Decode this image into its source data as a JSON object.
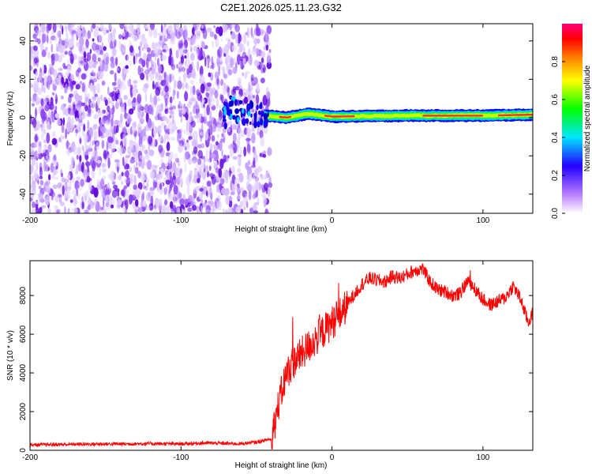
{
  "title": "C2E1.2026.025.11.23.G32",
  "chart_data": [
    {
      "type": "heatmap",
      "xlabel": "Height of straight line (km)",
      "ylabel": "Frequency (Hz)",
      "xlim": [
        -200,
        133
      ],
      "ylim": [
        -50,
        49
      ],
      "xticks": [
        -200,
        -100,
        0,
        100
      ],
      "yticks": [
        -40,
        -20,
        0,
        20,
        40
      ],
      "xtick_labels": [
        "-200",
        "-100",
        "0",
        "100"
      ],
      "ytick_labels": [
        "-40",
        "-20",
        "0",
        "20",
        "40"
      ],
      "noise_region_km": [
        -200,
        -45
      ],
      "signal_region_km": [
        -45,
        133
      ],
      "signal_center_hz": [
        {
          "x": -70,
          "y": 5
        },
        {
          "x": -45,
          "y": 1
        },
        {
          "x": -30,
          "y": 0
        },
        {
          "x": -15,
          "y": 2
        },
        {
          "x": 0,
          "y": 0.5
        },
        {
          "x": 50,
          "y": 1
        },
        {
          "x": 100,
          "y": 1
        },
        {
          "x": 133,
          "y": 1.5
        }
      ],
      "colorbar": {
        "label": "Normalized spectral amplitude",
        "range": [
          0,
          1
        ],
        "ticks": [
          0.0,
          0.2,
          0.4,
          0.6,
          0.8
        ],
        "tick_labels": [
          "0.0",
          "0.2",
          "0.4",
          "0.6",
          "0.8"
        ],
        "colors": [
          "#ffffff",
          "#8a2be2",
          "#0000ff",
          "#00ffff",
          "#00ff00",
          "#ffff00",
          "#ff8000",
          "#ff0000",
          "#ff0080"
        ]
      }
    },
    {
      "type": "line",
      "xlabel": "Height of straight line (km)",
      "ylabel": "SNR (10 * v/v)",
      "xlim": [
        -200,
        133
      ],
      "ylim": [
        0,
        9800
      ],
      "xticks": [
        -200,
        -100,
        0,
        100
      ],
      "yticks": [
        0,
        2000,
        4000,
        6000,
        8000
      ],
      "xtick_labels": [
        "-200",
        "-100",
        "0",
        "100"
      ],
      "ytick_labels": [
        "0",
        "2000",
        "4000",
        "6000",
        "8000"
      ],
      "color": "#ff0000",
      "series": [
        {
          "name": "SNR",
          "points": [
            {
              "x": -200,
              "y": 280
            },
            {
              "x": -180,
              "y": 300
            },
            {
              "x": -160,
              "y": 320
            },
            {
              "x": -140,
              "y": 330
            },
            {
              "x": -120,
              "y": 340
            },
            {
              "x": -100,
              "y": 330
            },
            {
              "x": -85,
              "y": 380
            },
            {
              "x": -70,
              "y": 350
            },
            {
              "x": -60,
              "y": 340
            },
            {
              "x": -50,
              "y": 420
            },
            {
              "x": -40,
              "y": 600
            },
            {
              "x": -35,
              "y": 2500
            },
            {
              "x": -30,
              "y": 4000
            },
            {
              "x": -25,
              "y": 4600
            },
            {
              "x": -20,
              "y": 5000
            },
            {
              "x": -15,
              "y": 5400
            },
            {
              "x": -10,
              "y": 5800
            },
            {
              "x": -5,
              "y": 6200
            },
            {
              "x": 0,
              "y": 6600
            },
            {
              "x": 5,
              "y": 7000
            },
            {
              "x": 10,
              "y": 7500
            },
            {
              "x": 15,
              "y": 8100
            },
            {
              "x": 20,
              "y": 8600
            },
            {
              "x": 25,
              "y": 8900
            },
            {
              "x": 30,
              "y": 8800
            },
            {
              "x": 35,
              "y": 8700
            },
            {
              "x": 40,
              "y": 9000
            },
            {
              "x": 45,
              "y": 8900
            },
            {
              "x": 50,
              "y": 9100
            },
            {
              "x": 55,
              "y": 9300
            },
            {
              "x": 60,
              "y": 9400
            },
            {
              "x": 65,
              "y": 8700
            },
            {
              "x": 70,
              "y": 8300
            },
            {
              "x": 75,
              "y": 8200
            },
            {
              "x": 80,
              "y": 8000
            },
            {
              "x": 85,
              "y": 8100
            },
            {
              "x": 90,
              "y": 8800
            },
            {
              "x": 95,
              "y": 8300
            },
            {
              "x": 100,
              "y": 7800
            },
            {
              "x": 105,
              "y": 7500
            },
            {
              "x": 110,
              "y": 7700
            },
            {
              "x": 115,
              "y": 7900
            },
            {
              "x": 120,
              "y": 8500
            },
            {
              "x": 125,
              "y": 7800
            },
            {
              "x": 130,
              "y": 6600
            },
            {
              "x": 133,
              "y": 7100
            }
          ]
        }
      ]
    }
  ]
}
